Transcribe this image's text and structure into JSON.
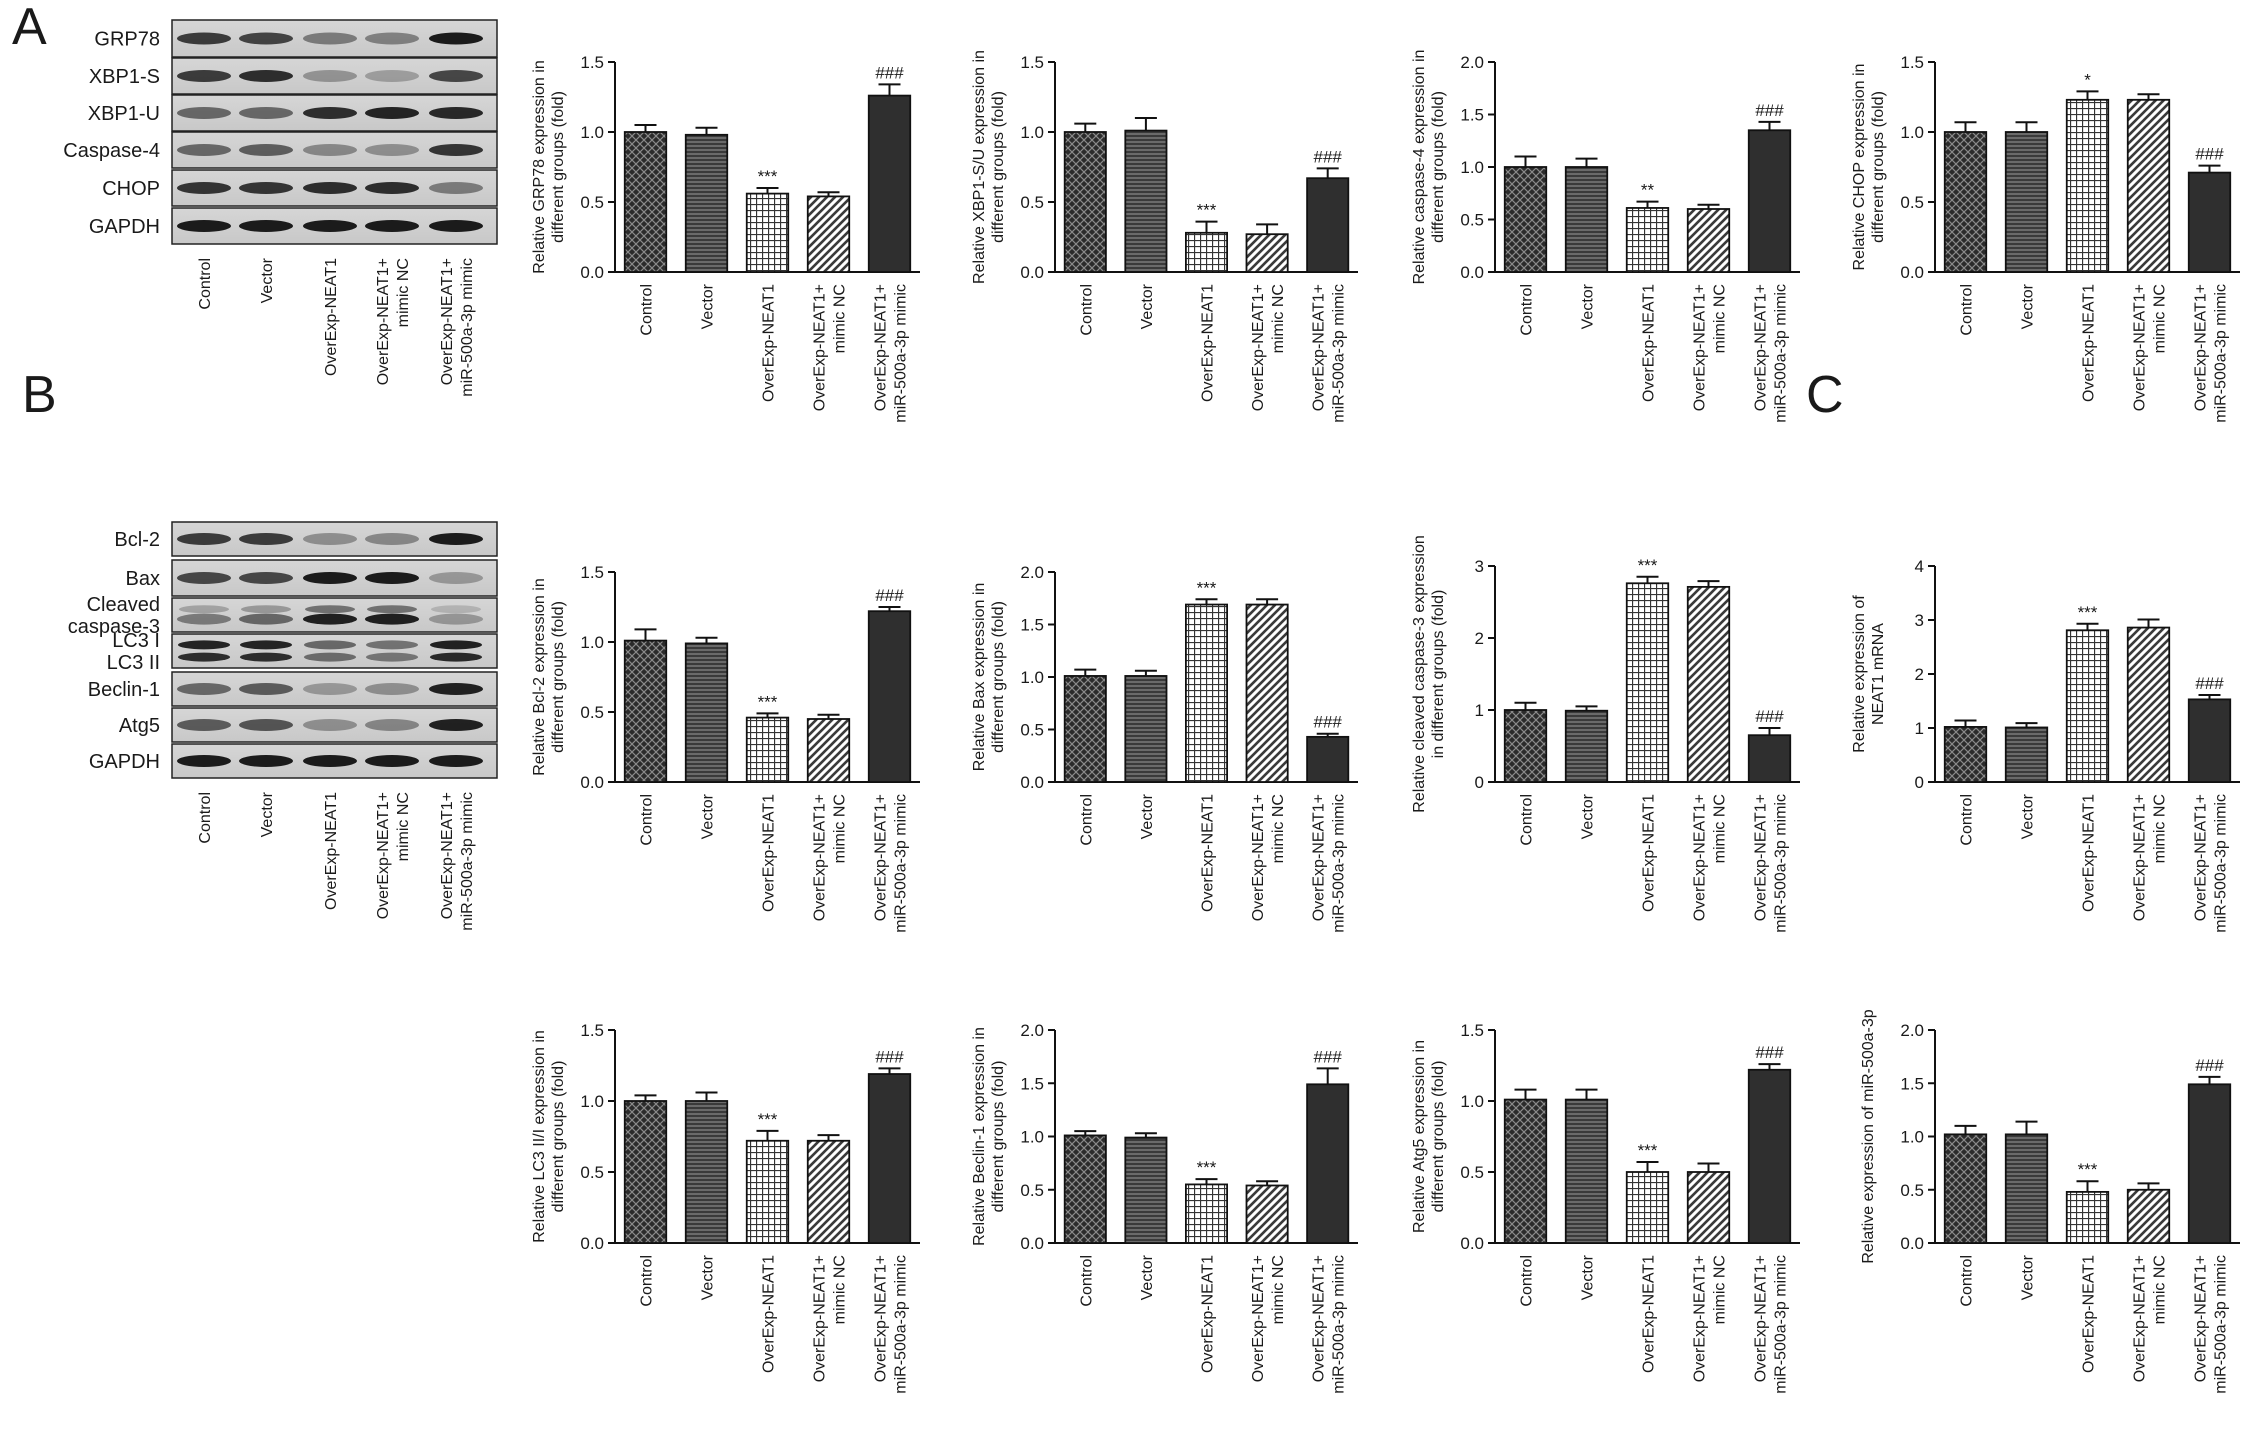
{
  "panels": {
    "A": "A",
    "B": "B",
    "C": "C"
  },
  "groups": [
    "Control",
    "Vector",
    "OverExp-NEAT1",
    "OverExp-NEAT1+\nmimic NC",
    "OverExp-NEAT1+\nmiR-500a-3p mimic"
  ],
  "blots": [
    {
      "panel": "A",
      "labels": [
        "GRP78",
        "XBP1-S",
        "XBP1-U",
        "Caspase-4",
        "CHOP",
        "GAPDH"
      ],
      "intensity": [
        [
          0.78,
          0.74,
          0.45,
          0.42,
          0.95
        ],
        [
          0.78,
          0.85,
          0.32,
          0.27,
          0.72
        ],
        [
          0.55,
          0.55,
          0.85,
          0.9,
          0.88
        ],
        [
          0.55,
          0.6,
          0.38,
          0.35,
          0.82
        ],
        [
          0.82,
          0.82,
          0.85,
          0.85,
          0.45
        ],
        [
          0.95,
          0.95,
          0.95,
          0.95,
          0.95
        ]
      ]
    },
    {
      "panel": "B",
      "labels": [
        "Bcl-2",
        "Bax",
        "Cleaved\ncaspase-3",
        "LC3 I\nLC3 II",
        "Beclin-1",
        "Atg5",
        "GAPDH"
      ],
      "intensity": [
        [
          0.78,
          0.78,
          0.35,
          0.38,
          0.95
        ],
        [
          0.72,
          0.72,
          0.95,
          0.95,
          0.3
        ],
        [
          0.45,
          0.55,
          0.92,
          0.92,
          0.3
        ],
        [
          0.9,
          0.9,
          0.55,
          0.5,
          0.92
        ],
        [
          0.55,
          0.62,
          0.3,
          0.35,
          0.92
        ],
        [
          0.62,
          0.65,
          0.35,
          0.4,
          0.92
        ],
        [
          0.95,
          0.95,
          0.95,
          0.95,
          0.95
        ]
      ]
    }
  ],
  "chart_data": [
    {
      "type": "bar",
      "panel": "A",
      "ylabel": "Relative GRP78 expression in\ndifferent groups (fold)",
      "ylim": [
        0,
        1.5
      ],
      "ticks": [
        "0.0",
        "0.5",
        "1.0",
        "1.5"
      ],
      "series": [
        {
          "values": [
            1.0,
            0.98,
            0.56,
            0.54,
            1.26
          ],
          "errors": [
            0.05,
            0.05,
            0.04,
            0.03,
            0.08
          ]
        }
      ],
      "annotations": [
        "",
        "",
        "***",
        "",
        "###"
      ]
    },
    {
      "type": "bar",
      "panel": "A",
      "ylabel": "Relative XBP1-S/U expression in\ndifferent groups (fold)",
      "ylim": [
        0,
        1.5
      ],
      "ticks": [
        "0.0",
        "0.5",
        "1.0",
        "1.5"
      ],
      "series": [
        {
          "values": [
            1.0,
            1.01,
            0.28,
            0.27,
            0.67
          ],
          "errors": [
            0.06,
            0.09,
            0.08,
            0.07,
            0.07
          ]
        }
      ],
      "annotations": [
        "",
        "",
        "***",
        "",
        "###"
      ]
    },
    {
      "type": "bar",
      "panel": "A",
      "ylabel": "Relative caspase-4 expression in\ndifferent groups (fold)",
      "ylim": [
        0,
        2.0
      ],
      "ticks": [
        "0.0",
        "0.5",
        "1.0",
        "1.5",
        "2.0"
      ],
      "series": [
        {
          "values": [
            1.0,
            1.0,
            0.61,
            0.6,
            1.35
          ],
          "errors": [
            0.1,
            0.08,
            0.06,
            0.04,
            0.08
          ]
        }
      ],
      "annotations": [
        "",
        "",
        "**",
        "",
        "###"
      ]
    },
    {
      "type": "bar",
      "panel": "A",
      "ylabel": "Relative CHOP expression in\ndifferent groups (fold)",
      "ylim": [
        0,
        1.5
      ],
      "ticks": [
        "0.0",
        "0.5",
        "1.0",
        "1.5"
      ],
      "series": [
        {
          "values": [
            1.0,
            1.0,
            1.23,
            1.23,
            0.71
          ],
          "errors": [
            0.07,
            0.07,
            0.06,
            0.04,
            0.05
          ]
        }
      ],
      "annotations": [
        "",
        "",
        "*",
        "",
        "###"
      ]
    },
    {
      "type": "bar",
      "panel": "B",
      "ylabel": "Relative Bcl-2 expression in\ndifferent groups (fold)",
      "ylim": [
        0,
        1.5
      ],
      "ticks": [
        "0.0",
        "0.5",
        "1.0",
        "1.5"
      ],
      "series": [
        {
          "values": [
            1.01,
            0.99,
            0.46,
            0.45,
            1.22
          ],
          "errors": [
            0.08,
            0.04,
            0.03,
            0.03,
            0.03
          ]
        }
      ],
      "annotations": [
        "",
        "",
        "***",
        "",
        "###"
      ]
    },
    {
      "type": "bar",
      "panel": "B",
      "ylabel": "Relative Bax expression in\ndifferent groups (fold)",
      "ylim": [
        0,
        2.0
      ],
      "ticks": [
        "0.0",
        "0.5",
        "1.0",
        "1.5",
        "2.0"
      ],
      "series": [
        {
          "values": [
            1.01,
            1.01,
            1.69,
            1.69,
            0.43
          ],
          "errors": [
            0.06,
            0.05,
            0.05,
            0.05,
            0.03
          ]
        }
      ],
      "annotations": [
        "",
        "",
        "***",
        "",
        "###"
      ]
    },
    {
      "type": "bar",
      "panel": "B",
      "ylabel": "Relative cleaved caspase-3 expression\nin different groups (fold)",
      "ylim": [
        0,
        3
      ],
      "ticks": [
        "0",
        "1",
        "2",
        "3"
      ],
      "series": [
        {
          "values": [
            1.0,
            0.99,
            2.76,
            2.71,
            0.65
          ],
          "errors": [
            0.1,
            0.06,
            0.09,
            0.08,
            0.1
          ]
        }
      ],
      "annotations": [
        "",
        "",
        "***",
        "",
        "###"
      ]
    },
    {
      "type": "bar",
      "panel": "C",
      "ylabel": "Relative expression of\nNEAT1 mRNA",
      "ylim": [
        0,
        4
      ],
      "ticks": [
        "0",
        "1",
        "2",
        "3",
        "4"
      ],
      "series": [
        {
          "values": [
            1.02,
            1.01,
            2.81,
            2.86,
            1.53
          ],
          "errors": [
            0.12,
            0.08,
            0.12,
            0.15,
            0.08
          ]
        }
      ],
      "annotations": [
        "",
        "",
        "***",
        "",
        "###"
      ]
    },
    {
      "type": "bar",
      "panel": "B",
      "ylabel": "Relative LC3 II/I expression in\ndifferent groups (fold)",
      "ylim": [
        0,
        1.5
      ],
      "ticks": [
        "0.0",
        "0.5",
        "1.0",
        "1.5"
      ],
      "series": [
        {
          "values": [
            1.0,
            1.0,
            0.72,
            0.72,
            1.19
          ],
          "errors": [
            0.04,
            0.06,
            0.07,
            0.04,
            0.04
          ]
        }
      ],
      "annotations": [
        "",
        "",
        "***",
        "",
        "###"
      ]
    },
    {
      "type": "bar",
      "panel": "B",
      "ylabel": "Relative Beclin-1 expression in\ndifferent groups (fold)",
      "ylim": [
        0,
        2.0
      ],
      "ticks": [
        "0.0",
        "0.5",
        "1.0",
        "1.5",
        "2.0"
      ],
      "series": [
        {
          "values": [
            1.01,
            0.99,
            0.55,
            0.54,
            1.49
          ],
          "errors": [
            0.04,
            0.04,
            0.05,
            0.04,
            0.15
          ]
        }
      ],
      "annotations": [
        "",
        "",
        "***",
        "",
        "###"
      ]
    },
    {
      "type": "bar",
      "panel": "B",
      "ylabel": "Relative Atg5 expression in\ndifferent groups (fold)",
      "ylim": [
        0,
        1.5
      ],
      "ticks": [
        "0.0",
        "0.5",
        "1.0",
        "1.5"
      ],
      "series": [
        {
          "values": [
            1.01,
            1.01,
            0.5,
            0.5,
            1.22
          ],
          "errors": [
            0.07,
            0.07,
            0.07,
            0.06,
            0.04
          ]
        }
      ],
      "annotations": [
        "",
        "",
        "***",
        "",
        "###"
      ]
    },
    {
      "type": "bar",
      "panel": "C",
      "ylabel": "Relative expression of miR-500a-3p",
      "ylim": [
        0,
        2.0
      ],
      "ticks": [
        "0.0",
        "0.5",
        "1.0",
        "1.5",
        "2.0"
      ],
      "series": [
        {
          "values": [
            1.02,
            1.02,
            0.48,
            0.5,
            1.49
          ],
          "errors": [
            0.08,
            0.12,
            0.1,
            0.06,
            0.07
          ]
        }
      ],
      "annotations": [
        "",
        "",
        "***",
        "",
        "###"
      ]
    }
  ]
}
